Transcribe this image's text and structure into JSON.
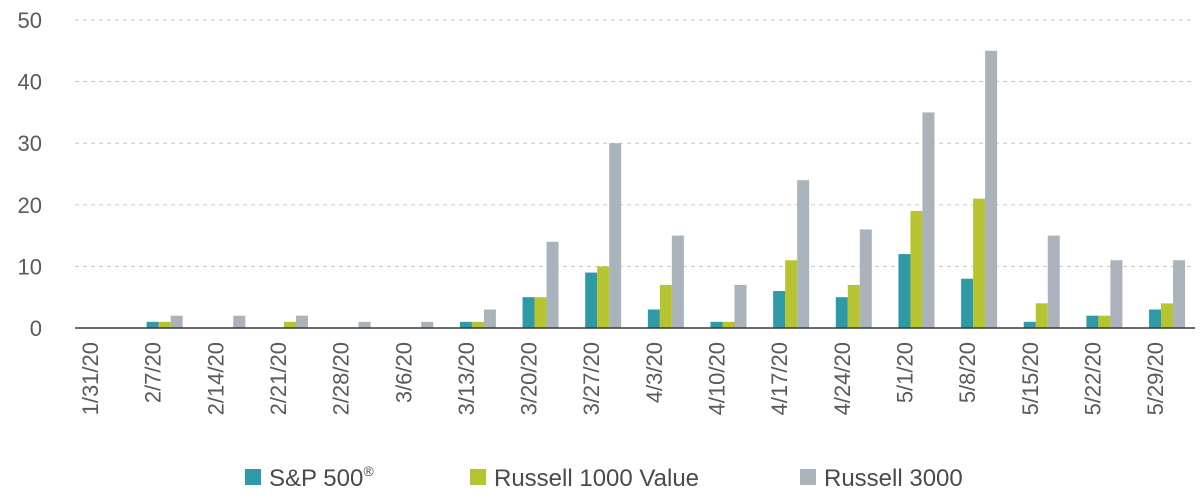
{
  "chart_data": {
    "type": "bar",
    "title": "",
    "xlabel": "",
    "ylabel": "",
    "ylim": [
      0,
      50
    ],
    "yticks": [
      0,
      10,
      20,
      30,
      40,
      50
    ],
    "grid": "horizontal-dashed",
    "legend_position": "bottom",
    "categories": [
      "1/31/20",
      "2/7/20",
      "2/14/20",
      "2/21/20",
      "2/28/20",
      "3/6/20",
      "3/13/20",
      "3/20/20",
      "3/27/20",
      "4/3/20",
      "4/10/20",
      "4/17/20",
      "4/24/20",
      "5/1/20",
      "5/8/20",
      "5/15/20",
      "5/22/20",
      "5/29/20"
    ],
    "series": [
      {
        "name": "S&P 500",
        "name_suffix": "®",
        "color": "#2f9aa6",
        "values": [
          0,
          1,
          0,
          0,
          0,
          0,
          1,
          5,
          9,
          3,
          1,
          6,
          5,
          12,
          8,
          1,
          2,
          3
        ]
      },
      {
        "name": "Russell 1000 Value",
        "name_suffix": "",
        "color": "#b7c431",
        "values": [
          0,
          1,
          0,
          1,
          0,
          0,
          1,
          5,
          10,
          7,
          1,
          11,
          7,
          19,
          21,
          4,
          2,
          4
        ]
      },
      {
        "name": "Russell 3000",
        "name_suffix": "",
        "color": "#aab2bb",
        "values": [
          0,
          2,
          2,
          2,
          1,
          1,
          3,
          14,
          30,
          15,
          7,
          24,
          16,
          35,
          45,
          15,
          11,
          11
        ]
      }
    ]
  },
  "colors": {
    "axis": "#3a3a3a",
    "grid": "#c8c8c8",
    "text": "#5a5a5a"
  }
}
